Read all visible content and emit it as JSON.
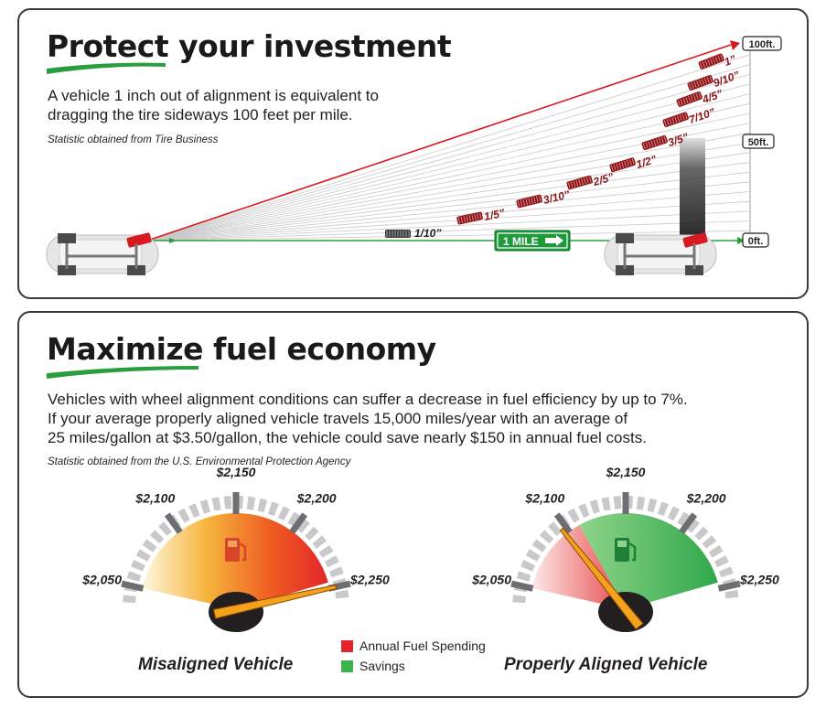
{
  "alignment_section": {
    "title_part1": "Protect",
    "title_part2": " your investment",
    "description_line1": "A vehicle 1 inch out of alignment is equivalent to",
    "description_line2": "dragging the tire sideways 100 feet per mile.",
    "source": "Statistic obtained from Tire Business",
    "mile_sign": "1 MILE",
    "scale_labels": [
      "100ft.",
      "50ft.",
      "0ft."
    ],
    "tire_labels": [
      "1/10”",
      "1/5”",
      "3/10”",
      "2/5”",
      "1/2”",
      "3/5”",
      "7/10”",
      "4/5”",
      "9/10”",
      "1”"
    ],
    "colors": {
      "misaligned": "#d71920",
      "aligned": "#2a9d3f",
      "sign": "#1e9a3a"
    }
  },
  "fuel_section": {
    "title_part1": "Maximize",
    "title_part2": " fuel economy",
    "description_line1": "Vehicles with wheel alignment conditions can suffer a decrease in fuel efficiency by up to 7%.",
    "description_line2": "If your average properly aligned vehicle travels 15,000 miles/year with an average of",
    "description_line3": "25 miles/gallon at $3.50/gallon, the vehicle could save nearly $150 in annual fuel costs.",
    "source": "Statistic obtained from the U.S. Environmental Protection Agency",
    "gauge_ticks": [
      "$2,050",
      "$2,100",
      "$2,150",
      "$2,200",
      "$2,250"
    ],
    "legend": [
      {
        "label": "Annual Fuel Spending",
        "color": "#e3262b"
      },
      {
        "label": "Savings",
        "color": "#3bb54a"
      }
    ],
    "gauges": [
      {
        "label": "Misaligned Vehicle",
        "needle_value": 2250,
        "icon": "fuel-pump-icon"
      },
      {
        "label": "Properly Aligned Vehicle",
        "needle_value": 2100,
        "icon": "money-fuel-icon"
      }
    ]
  }
}
